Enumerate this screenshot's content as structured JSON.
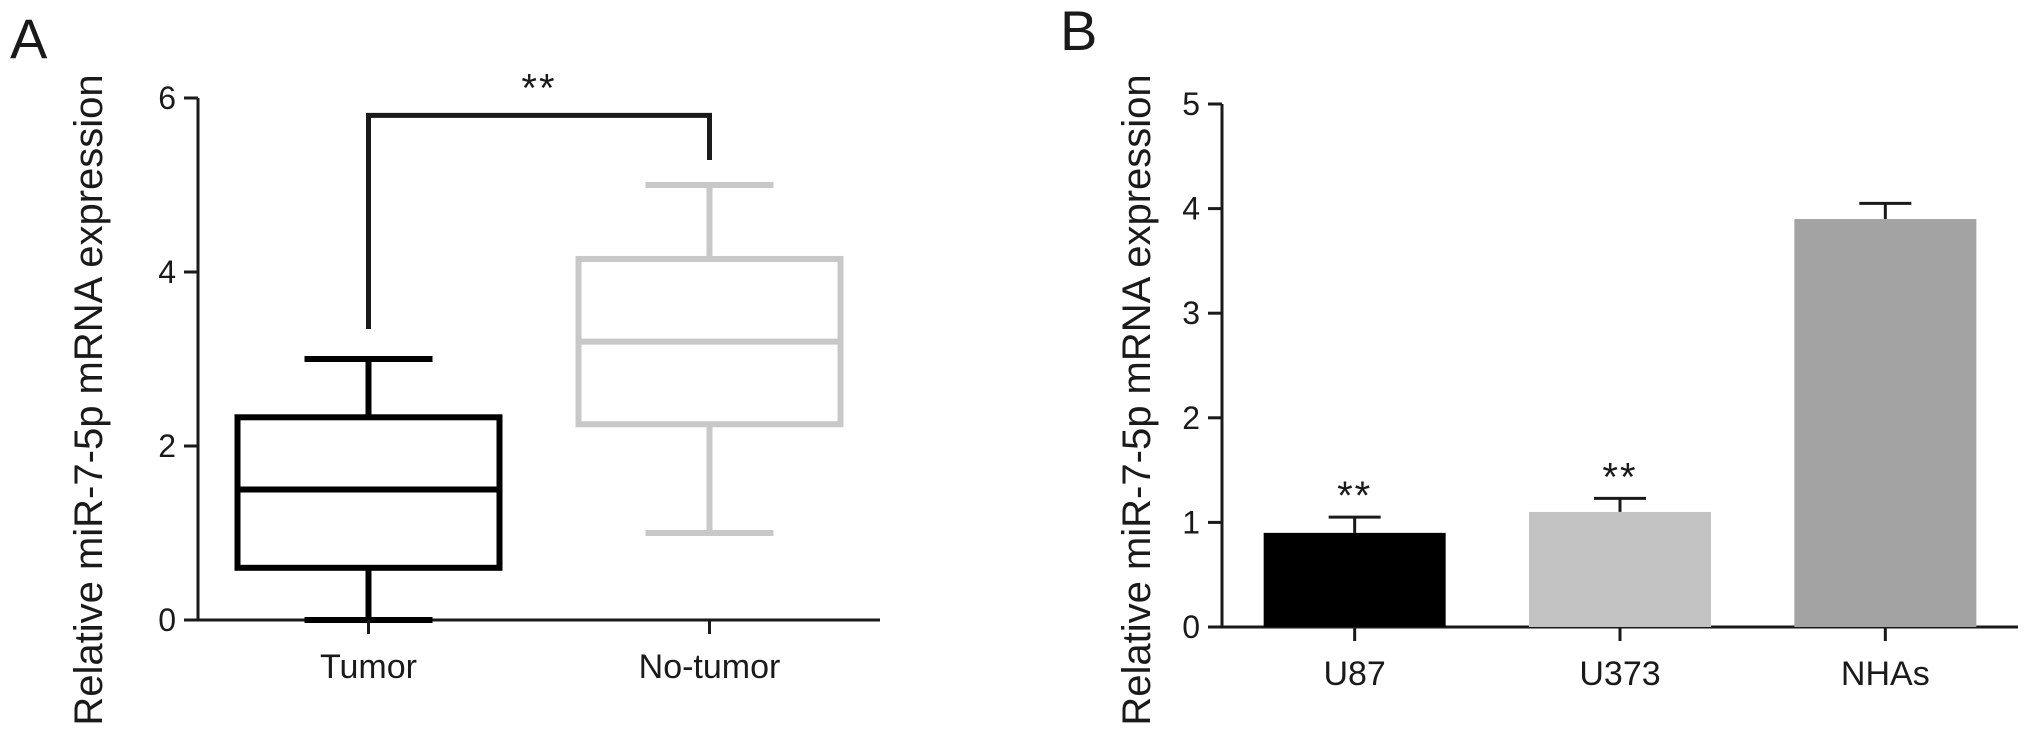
{
  "panels": [
    {
      "letter": "A",
      "ylabel": "Relative miR-7-5p mRNA expression",
      "significance": "**"
    },
    {
      "letter": "B",
      "ylabel": "Relative miR-7-5p mRNA expression",
      "significance_labels": [
        "**",
        "**",
        ""
      ]
    }
  ],
  "chart_data": [
    {
      "type": "boxplot",
      "panel": "A",
      "ylabel": "Relative miR-7-5p mRNA expression",
      "ylim": [
        0,
        6
      ],
      "yticks": [
        0,
        2,
        4,
        6
      ],
      "categories": [
        "Tumor",
        "No-tumor"
      ],
      "boxes": [
        {
          "category": "Tumor",
          "min": 0.0,
          "q1": 0.6,
          "median": 1.5,
          "q3": 2.33,
          "max": 3.0,
          "color": "#000000"
        },
        {
          "category": "No-tumor",
          "min": 1.0,
          "q1": 2.25,
          "median": 3.2,
          "q3": 4.15,
          "max": 5.0,
          "color": "#c8c8c8"
        }
      ],
      "significance": {
        "label": "**",
        "between": [
          "Tumor",
          "No-tumor"
        ],
        "y": 5.8
      }
    },
    {
      "type": "bar",
      "panel": "B",
      "ylabel": "Relative miR-7-5p mRNA expression",
      "ylim": [
        0,
        5
      ],
      "yticks": [
        0,
        1,
        2,
        3,
        4,
        5
      ],
      "categories": [
        "U87",
        "U373",
        "NHAs"
      ],
      "values": [
        0.9,
        1.1,
        3.9
      ],
      "errors": [
        0.15,
        0.13,
        0.15
      ],
      "colors": [
        "#000000",
        "#c3c3c3",
        "#a3a3a3"
      ],
      "annotations": [
        "**",
        "**",
        ""
      ]
    }
  ]
}
